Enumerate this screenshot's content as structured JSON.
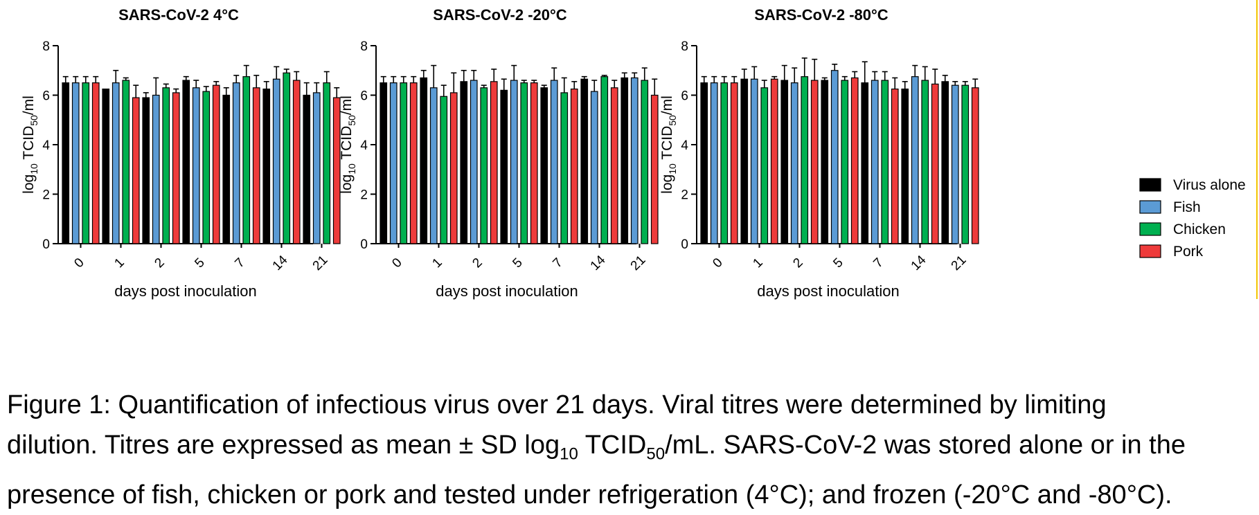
{
  "chart_data": [
    {
      "type": "bar",
      "title": "SARS-CoV-2 4°C",
      "xlabel": "days post inoculation",
      "ylabel": {
        "prefix": "log",
        "sub1": "10",
        "mid": " TCID",
        "sub2": "50",
        "suffix": "/ml"
      },
      "ylim": [
        0,
        8
      ],
      "yticks": [
        "0",
        "2",
        "4",
        "6",
        "8"
      ],
      "categories": [
        "0",
        "1",
        "2",
        "5",
        "7",
        "14",
        "21"
      ],
      "series": [
        {
          "name": "Virus alone",
          "values": [
            6.5,
            6.25,
            5.9,
            6.6,
            6.0,
            6.25,
            6.0
          ],
          "errors": [
            0.25,
            0,
            0.2,
            0.15,
            0.3,
            0.3,
            0.5
          ]
        },
        {
          "name": "Fish",
          "values": [
            6.5,
            6.5,
            6.0,
            6.3,
            6.5,
            6.65,
            6.1
          ],
          "errors": [
            0.25,
            0.5,
            0.7,
            0.3,
            0.3,
            0.5,
            0.4
          ]
        },
        {
          "name": "Chicken",
          "values": [
            6.5,
            6.6,
            6.3,
            6.15,
            6.75,
            6.9,
            6.5
          ],
          "errors": [
            0.25,
            0.1,
            0.15,
            0.2,
            0.45,
            0.15,
            0.45
          ]
        },
        {
          "name": "Pork",
          "values": [
            6.5,
            5.9,
            6.1,
            6.4,
            6.3,
            6.6,
            5.9
          ],
          "errors": [
            0.25,
            0.5,
            0.15,
            0.15,
            0.5,
            0.35,
            0.4
          ]
        }
      ]
    },
    {
      "type": "bar",
      "title": "SARS-CoV-2 -20°C",
      "xlabel": "days post inoculation",
      "ylabel": {
        "prefix": "log",
        "sub1": "10",
        "mid": " TCID",
        "sub2": "50",
        "suffix": "/ml"
      },
      "ylim": [
        0,
        8
      ],
      "yticks": [
        "0",
        "2",
        "4",
        "6",
        "8"
      ],
      "categories": [
        "0",
        "1",
        "2",
        "5",
        "7",
        "14",
        "21"
      ],
      "series": [
        {
          "name": "Virus alone",
          "values": [
            6.5,
            6.7,
            6.55,
            6.2,
            6.3,
            6.65,
            6.7
          ],
          "errors": [
            0.25,
            0.3,
            0.45,
            0.45,
            0.1,
            0.1,
            0.2
          ]
        },
        {
          "name": "Fish",
          "values": [
            6.5,
            6.3,
            6.6,
            6.6,
            6.6,
            6.15,
            6.7
          ],
          "errors": [
            0.25,
            0.9,
            0.4,
            0.6,
            0.5,
            0.45,
            0.2
          ]
        },
        {
          "name": "Chicken",
          "values": [
            6.5,
            5.95,
            6.3,
            6.5,
            6.1,
            6.75,
            6.6
          ],
          "errors": [
            0.25,
            0.45,
            0.1,
            0.1,
            0.6,
            0.05,
            0.5
          ]
        },
        {
          "name": "Pork",
          "values": [
            6.5,
            6.1,
            6.55,
            6.5,
            6.25,
            6.3,
            6.0
          ],
          "errors": [
            0.25,
            0.8,
            0.5,
            0.1,
            0.3,
            0.3,
            0.65
          ]
        }
      ]
    },
    {
      "type": "bar",
      "title": "SARS-CoV-2 -80°C",
      "xlabel": "days post inoculation",
      "ylabel": {
        "prefix": "log",
        "sub1": "10",
        "mid": " TCID",
        "sub2": "50",
        "suffix": "/ml"
      },
      "ylim": [
        0,
        8
      ],
      "yticks": [
        "0",
        "2",
        "4",
        "6",
        "8"
      ],
      "categories": [
        "0",
        "1",
        "2",
        "5",
        "7",
        "14",
        "21"
      ],
      "series": [
        {
          "name": "Virus alone",
          "values": [
            6.5,
            6.65,
            6.6,
            6.6,
            6.5,
            6.25,
            6.55
          ],
          "errors": [
            0.25,
            0.4,
            0.6,
            0.1,
            0.85,
            0.3,
            0.25
          ]
        },
        {
          "name": "Fish",
          "values": [
            6.5,
            6.65,
            6.5,
            7.0,
            6.6,
            6.75,
            6.4
          ],
          "errors": [
            0.25,
            0.5,
            0.6,
            0.25,
            0.35,
            0.45,
            0.15
          ]
        },
        {
          "name": "Chicken",
          "values": [
            6.5,
            6.3,
            6.75,
            6.6,
            6.6,
            6.6,
            6.4
          ],
          "errors": [
            0.25,
            0.3,
            0.75,
            0.15,
            0.35,
            0.55,
            0.15
          ]
        },
        {
          "name": "Pork",
          "values": [
            6.5,
            6.65,
            6.6,
            6.7,
            6.25,
            6.45,
            6.3
          ],
          "errors": [
            0.25,
            0.1,
            0.85,
            0.25,
            0.45,
            0.6,
            0.35
          ]
        }
      ]
    }
  ],
  "legend": {
    "placement": "right",
    "items": [
      {
        "label": "Virus alone",
        "color": "#000000"
      },
      {
        "label": "Fish",
        "color": "#5b9bd5"
      },
      {
        "label": "Chicken",
        "color": "#00b050"
      },
      {
        "label": "Pork",
        "color": "#ee3b3b"
      }
    ]
  },
  "colors": {
    "Virus alone": "#000000",
    "Fish": "#5b9bd5",
    "Chicken": "#00b050",
    "Pork": "#ee3b3b"
  },
  "caption": {
    "line1": "Figure 1: Quantification of infectious virus over 21 days. Viral titres were determined by limiting",
    "line2_a": "dilution. Titres are expressed as mean ± SD log",
    "line2_sub1": "10",
    "line2_b": " TCID",
    "line2_sub2": "50",
    "line2_c": "/mL. SARS-CoV-2 was stored alone or in the",
    "line3": "presence of fish, chicken or pork and tested under refrigeration (4°C); and frozen (-20°C and -80°C)."
  }
}
